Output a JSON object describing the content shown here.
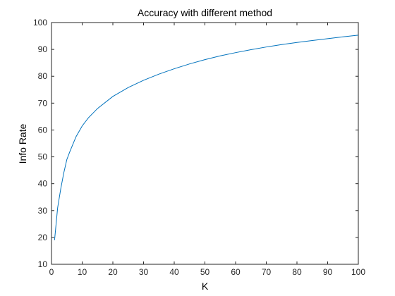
{
  "chart_data": {
    "type": "line",
    "title": "Accuracy with different method",
    "xlabel": "K",
    "ylabel": "Info Rate",
    "xlim": [
      0,
      100
    ],
    "ylim": [
      10,
      100
    ],
    "xticks": [
      0,
      10,
      20,
      30,
      40,
      50,
      60,
      70,
      80,
      90,
      100
    ],
    "yticks": [
      10,
      20,
      30,
      40,
      50,
      60,
      70,
      80,
      90,
      100
    ],
    "grid": false,
    "series": [
      {
        "color": "#0072BD",
        "x": [
          1,
          2,
          3,
          4,
          5,
          6,
          8,
          10,
          12,
          15,
          20,
          25,
          30,
          35,
          40,
          45,
          50,
          55,
          60,
          65,
          70,
          75,
          80,
          85,
          90,
          95,
          100
        ],
        "y": [
          19,
          31,
          38,
          44,
          49,
          52,
          57.5,
          61.5,
          64.5,
          68,
          72.5,
          75.8,
          78.5,
          80.8,
          82.8,
          84.6,
          86.2,
          87.6,
          88.8,
          89.9,
          90.9,
          91.8,
          92.6,
          93.3,
          94,
          94.7,
          95.3
        ]
      }
    ]
  }
}
